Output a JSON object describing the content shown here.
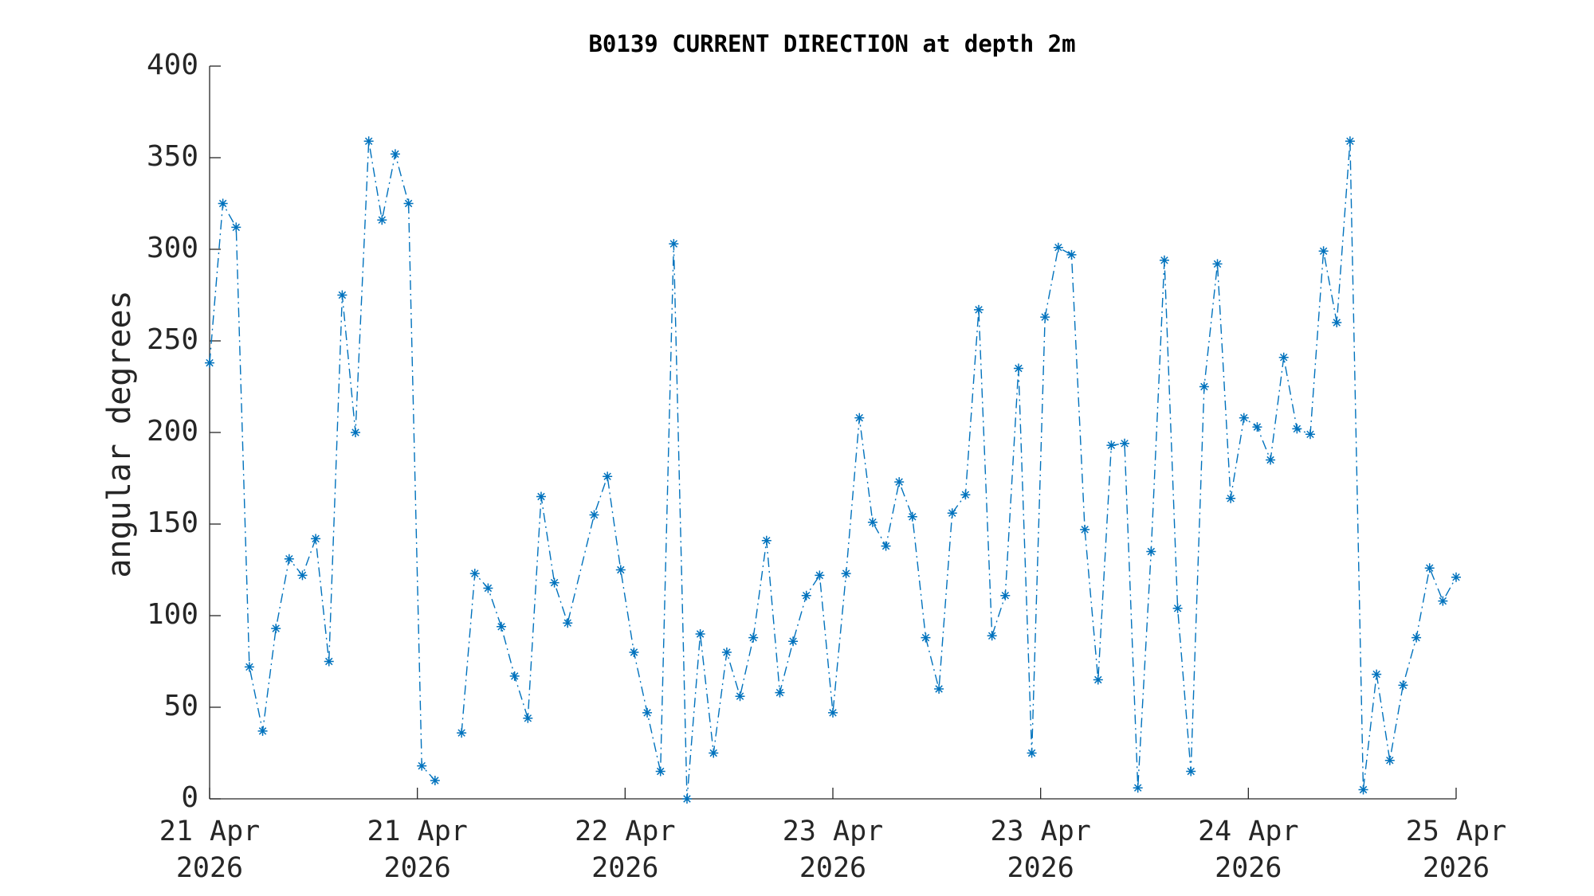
{
  "chart_data": {
    "type": "line",
    "title": "B0139 CURRENT DIRECTION at depth 2m",
    "ylabel": "angular degrees",
    "color": "#0072bd",
    "marker": "asterisk",
    "line_style": "dash-dot",
    "grid": false,
    "x": [
      0,
      1,
      2,
      3,
      4,
      5,
      6,
      7,
      8,
      9,
      10,
      11,
      12,
      13,
      14,
      15,
      16,
      17,
      18,
      19,
      20,
      21,
      22,
      23,
      24,
      25,
      26,
      27,
      29,
      30,
      31,
      32,
      33,
      34,
      35,
      36,
      37,
      38,
      39,
      40,
      41,
      42,
      43,
      44,
      45,
      46,
      47,
      48,
      49,
      50,
      51,
      52,
      53,
      54,
      55,
      56,
      57,
      58,
      59,
      60,
      61,
      62,
      63,
      64,
      65,
      66,
      67,
      68,
      69,
      70,
      71,
      72,
      73,
      74,
      75,
      76,
      77,
      78,
      79,
      80,
      81,
      82,
      83,
      84,
      85,
      86,
      87,
      88,
      89,
      90,
      91,
      92,
      93,
      94
    ],
    "values": [
      238,
      325,
      312,
      72,
      37,
      93,
      131,
      122,
      142,
      75,
      275,
      200,
      359,
      316,
      352,
      325,
      18,
      10,
      null,
      36,
      123,
      115,
      94,
      67,
      44,
      165,
      118,
      96,
      155,
      176,
      125,
      80,
      47,
      15,
      303,
      0,
      90,
      25,
      80,
      56,
      88,
      141,
      58,
      86,
      111,
      122,
      47,
      123,
      208,
      151,
      138,
      173,
      154,
      88,
      60,
      156,
      166,
      267,
      89,
      111,
      235,
      25,
      263,
      301,
      297,
      147,
      65,
      193,
      194,
      6,
      135,
      294,
      104,
      15,
      225,
      292,
      164,
      208,
      203,
      185,
      241,
      202,
      199,
      299,
      260,
      359,
      5,
      68,
      21,
      62,
      88,
      126,
      108,
      121
    ],
    "xlim": [
      0,
      94
    ],
    "xticks": [
      {
        "value": 0,
        "label": "21 Apr 2026"
      },
      {
        "value": 15.667,
        "label": "21 Apr 2026"
      },
      {
        "value": 31.333,
        "label": "22 Apr 2026"
      },
      {
        "value": 47,
        "label": "23 Apr 2026"
      },
      {
        "value": 62.667,
        "label": "23 Apr 2026"
      },
      {
        "value": 78.333,
        "label": "24 Apr 2026"
      },
      {
        "value": 94,
        "label": "25 Apr 2026"
      }
    ],
    "ylim": [
      0,
      400
    ],
    "yticks": [
      0,
      50,
      100,
      150,
      200,
      250,
      300,
      350,
      400
    ]
  }
}
